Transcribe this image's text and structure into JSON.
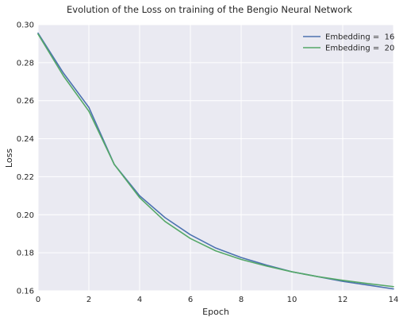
{
  "chart_data": {
    "type": "line",
    "title": "Evolution of the Loss on training of the Bengio Neural Network",
    "xlabel": "Epoch",
    "ylabel": "Loss",
    "xlim": [
      0,
      14
    ],
    "ylim": [
      0.16,
      0.3
    ],
    "xticks": [
      0,
      2,
      4,
      6,
      8,
      10,
      12,
      14
    ],
    "xtick_labels": [
      "0",
      "2",
      "4",
      "6",
      "8",
      "10",
      "12",
      "14"
    ],
    "yticks": [
      0.16,
      0.18,
      0.2,
      0.22,
      0.24,
      0.26,
      0.28,
      0.3
    ],
    "ytick_labels": [
      "0.16",
      "0.18",
      "0.20",
      "0.22",
      "0.24",
      "0.26",
      "0.28",
      "0.30"
    ],
    "grid": true,
    "legend_position": "top-right",
    "x": [
      0,
      1,
      2,
      3,
      4,
      5,
      6,
      7,
      8,
      9,
      10,
      11,
      12,
      13,
      14
    ],
    "series": [
      {
        "name": "Embedding =  16",
        "color": "#4c72b0",
        "values": [
          0.2955,
          0.2745,
          0.2565,
          0.2265,
          0.21,
          0.1985,
          0.1895,
          0.1825,
          0.1775,
          0.1735,
          0.17,
          0.1675,
          0.165,
          0.163,
          0.161
        ]
      },
      {
        "name": "Embedding =  20",
        "color": "#55a868",
        "values": [
          0.295,
          0.273,
          0.2545,
          0.2265,
          0.209,
          0.1965,
          0.1875,
          0.181,
          0.1765,
          0.173,
          0.17,
          0.1675,
          0.1655,
          0.1638,
          0.1622
        ]
      }
    ]
  },
  "colors": {
    "plot_background": "#eaeaf2",
    "grid": "#ffffff",
    "text": "#262626"
  }
}
